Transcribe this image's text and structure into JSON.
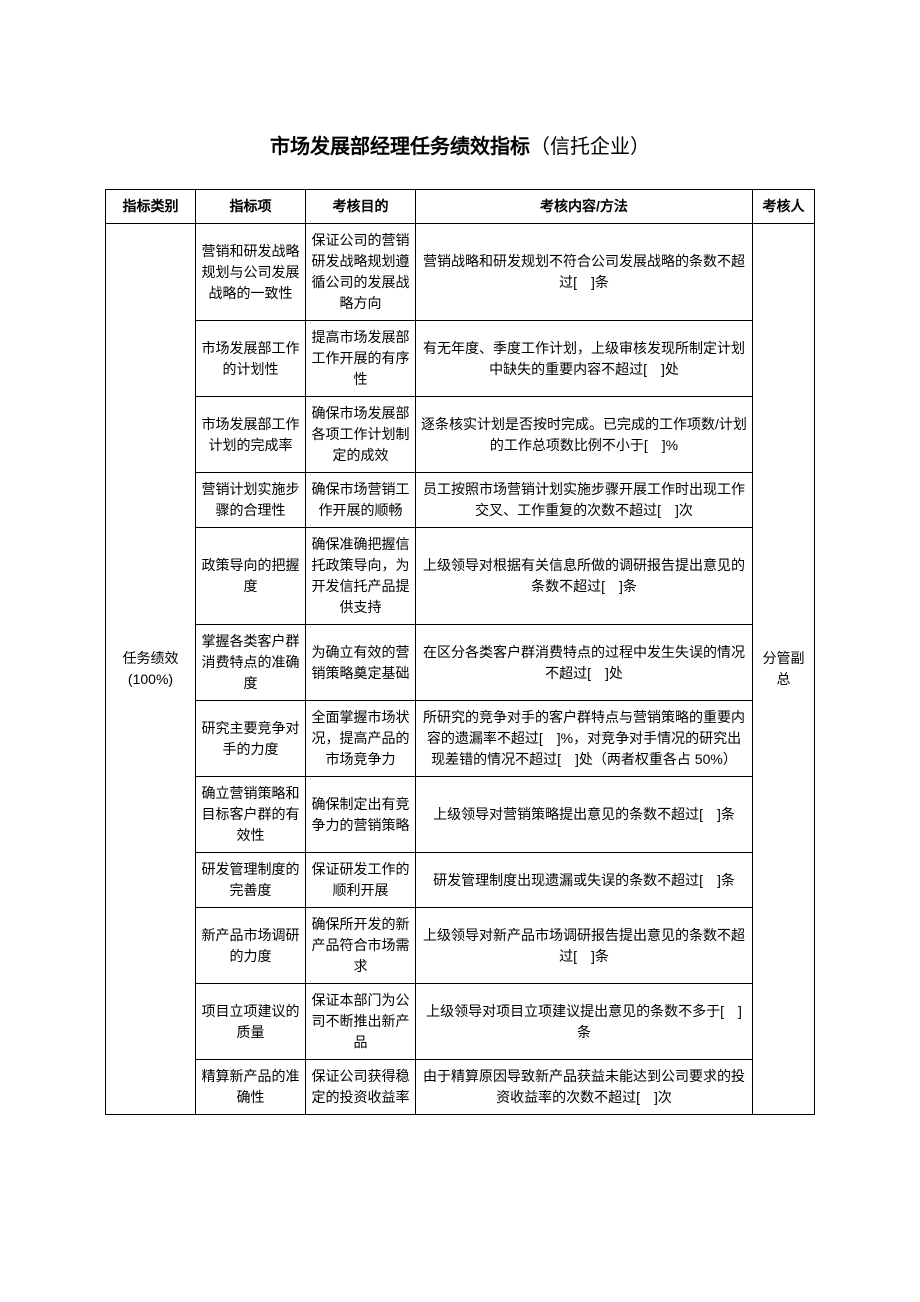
{
  "title_main": "市场发展部经理任务绩效指标",
  "title_sub": "（信托企业）",
  "headers": {
    "category": "指标类别",
    "item": "指标项",
    "purpose": "考核目的",
    "content": "考核内容/方法",
    "assessor": "考核人"
  },
  "category": {
    "label": "任务绩效",
    "weight": "(100%)"
  },
  "assessor": "分管副总",
  "rows": [
    {
      "item": "营销和研发战略规划与公司发展战略的一致性",
      "purpose": "保证公司的营销研发战略规划遵循公司的发展战略方向",
      "content": "营销战略和研发规划不符合公司发展战略的条数不超过[　]条"
    },
    {
      "item": "市场发展部工作的计划性",
      "purpose": "提高市场发展部工作开展的有序性",
      "content": "有无年度、季度工作计划，上级审核发现所制定计划中缺失的重要内容不超过[　]处"
    },
    {
      "item": "市场发展部工作计划的完成率",
      "purpose": "确保市场发展部各项工作计划制定的成效",
      "content": "逐条核实计划是否按时完成。已完成的工作项数/计划的工作总项数比例不小于[　]%"
    },
    {
      "item": "营销计划实施步骤的合理性",
      "purpose": "确保市场营销工作开展的顺畅",
      "content": "员工按照市场营销计划实施步骤开展工作时出现工作交叉、工作重复的次数不超过[　]次"
    },
    {
      "item": "政策导向的把握度",
      "purpose": "确保准确把握信托政策导向，为开发信托产品提供支持",
      "content": "上级领导对根据有关信息所做的调研报告提出意见的条数不超过[　]条"
    },
    {
      "item": "掌握各类客户群消费特点的准确度",
      "purpose": "为确立有效的营销策略奠定基础",
      "content": "在区分各类客户群消费特点的过程中发生失误的情况不超过[　]处"
    },
    {
      "item": "研究主要竞争对手的力度",
      "purpose": "全面掌握市场状况，提高产品的市场竞争力",
      "content": "所研究的竞争对手的客户群特点与营销策略的重要内容的遗漏率不超过[　]%，对竞争对手情况的研究出现差错的情况不超过[　]处（两者权重各占 50%）"
    },
    {
      "item": "确立营销策略和目标客户群的有效性",
      "purpose": "确保制定出有竞争力的营销策略",
      "content": "上级领导对营销策略提出意见的条数不超过[　]条"
    },
    {
      "item": "研发管理制度的完善度",
      "purpose": "保证研发工作的顺利开展",
      "content": "研发管理制度出现遗漏或失误的条数不超过[　]条"
    },
    {
      "item": "新产品市场调研的力度",
      "purpose": "确保所开发的新产品符合市场需求",
      "content": "上级领导对新产品市场调研报告提出意见的条数不超过[　]条"
    },
    {
      "item": "项目立项建议的质量",
      "purpose": "保证本部门为公司不断推出新产品",
      "content": "上级领导对项目立项建议提出意见的条数不多于[　]条"
    },
    {
      "item": "精算新产品的准确性",
      "purpose": "保证公司获得稳定的投资收益率",
      "content": "由于精算原因导致新产品获益未能达到公司要求的投资收益率的次数不超过[　]次"
    }
  ]
}
